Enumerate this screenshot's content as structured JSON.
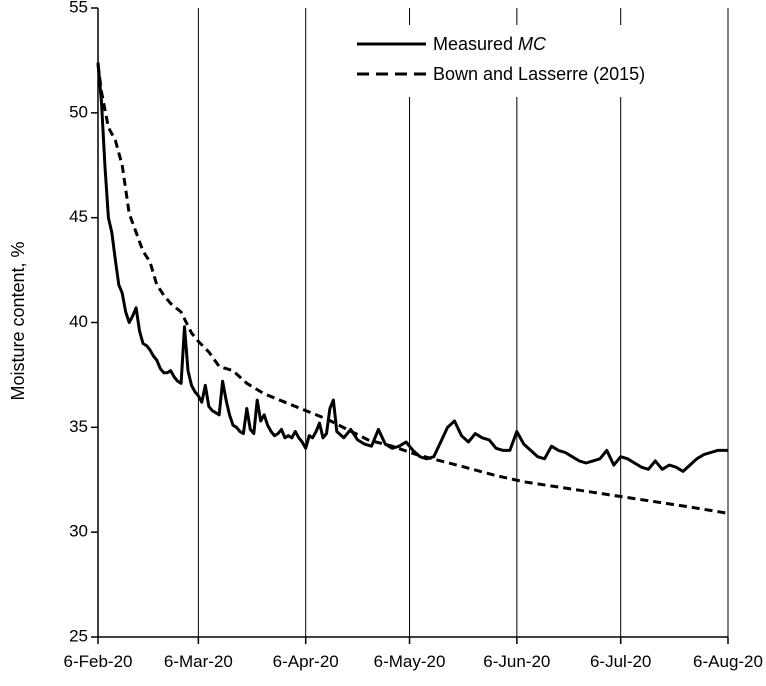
{
  "chart_data": {
    "type": "line",
    "title": "",
    "xlabel": "",
    "ylabel": "Moisture content, %",
    "ylim": [
      25,
      55
    ],
    "yticks": [
      25,
      30,
      35,
      40,
      45,
      50,
      55
    ],
    "xlim": [
      "2020-02-06",
      "2020-08-06"
    ],
    "xticks": [
      {
        "date": "2020-02-06",
        "label": "6-Feb-20"
      },
      {
        "date": "2020-03-06",
        "label": "6-Mar-20"
      },
      {
        "date": "2020-04-06",
        "label": "6-Apr-20"
      },
      {
        "date": "2020-05-06",
        "label": "6-May-20"
      },
      {
        "date": "2020-06-06",
        "label": "6-Jun-20"
      },
      {
        "date": "2020-07-06",
        "label": "6-Jul-20"
      },
      {
        "date": "2020-08-06",
        "label": "6-Aug-20"
      }
    ],
    "grid": "vertical",
    "legend_position": "top-right",
    "legend": [
      {
        "label": "Measured ",
        "label_italic": "MC",
        "style": "solid"
      },
      {
        "label": "Bown and Lasserre (2015)",
        "label_italic": "",
        "style": "dashed"
      }
    ],
    "series": [
      {
        "name": "Measured MC",
        "style": "solid",
        "color": "#000000",
        "x": [
          "2020-02-06",
          "2020-02-07",
          "2020-02-08",
          "2020-02-09",
          "2020-02-10",
          "2020-02-11",
          "2020-02-12",
          "2020-02-13",
          "2020-02-14",
          "2020-02-15",
          "2020-02-16",
          "2020-02-17",
          "2020-02-18",
          "2020-02-19",
          "2020-02-20",
          "2020-02-21",
          "2020-02-22",
          "2020-02-23",
          "2020-02-24",
          "2020-02-25",
          "2020-02-26",
          "2020-02-27",
          "2020-02-28",
          "2020-02-29",
          "2020-03-01",
          "2020-03-02",
          "2020-03-03",
          "2020-03-04",
          "2020-03-05",
          "2020-03-06",
          "2020-03-07",
          "2020-03-08",
          "2020-03-09",
          "2020-03-10",
          "2020-03-11",
          "2020-03-12",
          "2020-03-13",
          "2020-03-14",
          "2020-03-15",
          "2020-03-16",
          "2020-03-17",
          "2020-03-18",
          "2020-03-19",
          "2020-03-20",
          "2020-03-21",
          "2020-03-22",
          "2020-03-23",
          "2020-03-24",
          "2020-03-25",
          "2020-03-26",
          "2020-03-27",
          "2020-03-28",
          "2020-03-29",
          "2020-03-30",
          "2020-03-31",
          "2020-04-01",
          "2020-04-02",
          "2020-04-03",
          "2020-04-04",
          "2020-04-05",
          "2020-04-06",
          "2020-04-07",
          "2020-04-08",
          "2020-04-09",
          "2020-04-10",
          "2020-04-11",
          "2020-04-12",
          "2020-04-13",
          "2020-04-14",
          "2020-04-15",
          "2020-04-17",
          "2020-04-19",
          "2020-04-21",
          "2020-04-23",
          "2020-04-25",
          "2020-04-27",
          "2020-04-29",
          "2020-05-01",
          "2020-05-03",
          "2020-05-05",
          "2020-05-07",
          "2020-05-09",
          "2020-05-11",
          "2020-05-13",
          "2020-05-15",
          "2020-05-17",
          "2020-05-19",
          "2020-05-21",
          "2020-05-23",
          "2020-05-25",
          "2020-05-27",
          "2020-05-29",
          "2020-05-31",
          "2020-06-02",
          "2020-06-04",
          "2020-06-06",
          "2020-06-08",
          "2020-06-10",
          "2020-06-12",
          "2020-06-14",
          "2020-06-16",
          "2020-06-18",
          "2020-06-20",
          "2020-06-22",
          "2020-06-24",
          "2020-06-26",
          "2020-06-28",
          "2020-06-30",
          "2020-07-02",
          "2020-07-04",
          "2020-07-06",
          "2020-07-08",
          "2020-07-10",
          "2020-07-12",
          "2020-07-14",
          "2020-07-16",
          "2020-07-18",
          "2020-07-20",
          "2020-07-22",
          "2020-07-24",
          "2020-07-26",
          "2020-07-28",
          "2020-07-30",
          "2020-08-01",
          "2020-08-03",
          "2020-08-05",
          "2020-08-06"
        ],
        "y": [
          52.4,
          50.5,
          47.5,
          45.0,
          44.3,
          43.0,
          41.8,
          41.4,
          40.5,
          40.0,
          40.3,
          40.7,
          39.6,
          39.0,
          38.9,
          38.7,
          38.4,
          38.2,
          37.8,
          37.6,
          37.6,
          37.7,
          37.4,
          37.2,
          37.1,
          39.8,
          37.7,
          37.0,
          36.7,
          36.5,
          36.2,
          37.0,
          36.0,
          35.8,
          35.7,
          35.6,
          37.2,
          36.3,
          35.6,
          35.1,
          35.0,
          34.8,
          34.7,
          35.9,
          34.9,
          34.7,
          36.3,
          35.3,
          35.6,
          35.1,
          34.8,
          34.6,
          34.7,
          34.9,
          34.5,
          34.6,
          34.5,
          34.8,
          34.5,
          34.3,
          34.0,
          34.6,
          34.5,
          34.8,
          35.2,
          34.5,
          34.7,
          35.9,
          36.3,
          34.8,
          34.5,
          34.9,
          34.4,
          34.2,
          34.1,
          34.9,
          34.2,
          34.0,
          34.1,
          34.3,
          33.9,
          33.6,
          33.5,
          33.6,
          34.3,
          35.0,
          35.3,
          34.6,
          34.3,
          34.7,
          34.5,
          34.4,
          34.0,
          33.9,
          33.9,
          34.8,
          34.2,
          33.9,
          33.6,
          33.5,
          34.1,
          33.9,
          33.8,
          33.6,
          33.4,
          33.3,
          33.4,
          33.5,
          33.9,
          33.2,
          33.6,
          33.5,
          33.3,
          33.1,
          33.0,
          33.4,
          33.0,
          33.2,
          33.1,
          32.9,
          33.2,
          33.5,
          33.7,
          33.8,
          33.9,
          33.9,
          33.9
        ],
        "note": ""
      },
      {
        "name": "Bown and Lasserre (2015)",
        "style": "dashed",
        "color": "#000000",
        "x": [
          "2020-02-06",
          "2020-02-07",
          "2020-02-09",
          "2020-02-11",
          "2020-02-13",
          "2020-02-15",
          "2020-02-17",
          "2020-02-19",
          "2020-02-21",
          "2020-02-23",
          "2020-02-25",
          "2020-02-27",
          "2020-03-01",
          "2020-03-04",
          "2020-03-06",
          "2020-03-09",
          "2020-03-12",
          "2020-03-16",
          "2020-03-20",
          "2020-03-25",
          "2020-03-31",
          "2020-04-06",
          "2020-04-12",
          "2020-04-18",
          "2020-04-24",
          "2020-05-01",
          "2020-05-08",
          "2020-05-15",
          "2020-05-22",
          "2020-05-31",
          "2020-06-08",
          "2020-06-16",
          "2020-06-24",
          "2020-07-02",
          "2020-07-10",
          "2020-07-18",
          "2020-07-26",
          "2020-08-06"
        ],
        "y": [
          52.3,
          51.0,
          49.3,
          48.7,
          47.5,
          45.2,
          44.3,
          43.4,
          42.9,
          41.8,
          41.3,
          40.9,
          40.5,
          39.5,
          39.1,
          38.6,
          37.9,
          37.7,
          37.1,
          36.6,
          36.2,
          35.8,
          35.4,
          34.9,
          34.4,
          34.1,
          33.7,
          33.4,
          33.1,
          32.7,
          32.4,
          32.2,
          32.0,
          31.8,
          31.6,
          31.4,
          31.2,
          30.9
        ]
      }
    ]
  }
}
